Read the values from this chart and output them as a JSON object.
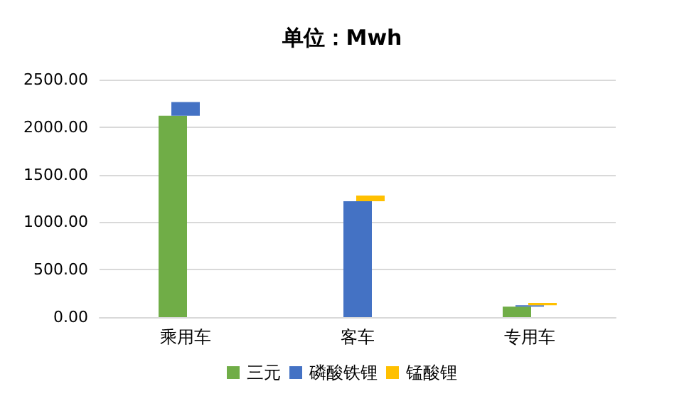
{
  "chart_data": {
    "type": "bar",
    "title": "单位：Mwh",
    "stacked": true,
    "categories": [
      "乘用车",
      "客车",
      "专用车"
    ],
    "series": [
      {
        "name": "三元",
        "color": "#70ad47",
        "values": [
          2120,
          0,
          110
        ]
      },
      {
        "name": "磷酸铁锂",
        "color": "#4472c4",
        "values": [
          145,
          1220,
          15
        ]
      },
      {
        "name": "锰酸锂",
        "color": "#ffc000",
        "values": [
          0,
          60,
          25
        ]
      }
    ],
    "ylim": [
      0,
      2500
    ],
    "yticks": [
      {
        "value": 0,
        "label": "0.00"
      },
      {
        "value": 500,
        "label": "500.00"
      },
      {
        "value": 1000,
        "label": "1000.00"
      },
      {
        "value": 1500,
        "label": "1500.00"
      },
      {
        "value": 2000,
        "label": "2000.00"
      },
      {
        "value": 2500,
        "label": "2500.00"
      }
    ],
    "grid": "y",
    "legend": "bottom"
  }
}
